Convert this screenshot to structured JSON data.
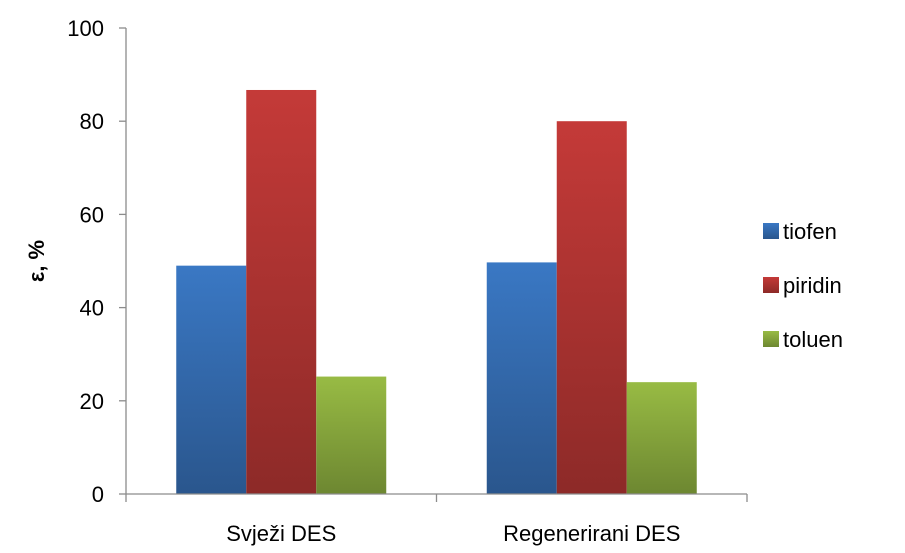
{
  "chart_data": {
    "type": "bar",
    "categories": [
      "Svježi DES",
      "Regenerirani DES"
    ],
    "series": [
      {
        "name": "tiofen",
        "values": [
          49,
          49.7
        ],
        "color": "#3a78c4"
      },
      {
        "name": "piridin",
        "values": [
          86.7,
          80
        ],
        "color": "#c43a38"
      },
      {
        "name": "toluen",
        "values": [
          25.2,
          24
        ],
        "color": "#98bb44"
      }
    ],
    "ylabel": "ε, %",
    "ylim": [
      0,
      100
    ],
    "yticks": [
      "0",
      "20",
      "40",
      "60",
      "80",
      "100"
    ],
    "grid": false,
    "legend": "right"
  }
}
